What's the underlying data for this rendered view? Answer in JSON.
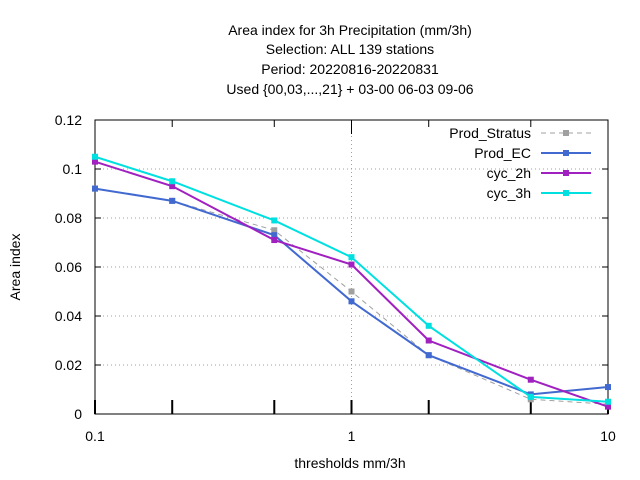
{
  "chart_data": {
    "type": "line",
    "title_lines": [
      "Area index  for 3h Precipitation (mm/3h)",
      "Selection: ALL    139 stations",
      "Period: 20220816-20220831",
      "Used {00,03,...,21} + 03-00 06-03 09-06"
    ],
    "xlabel": "thresholds mm/3h",
    "ylabel": "Area index",
    "x_scale": "log",
    "xlim": [
      0.1,
      10
    ],
    "ylim": [
      0,
      0.12
    ],
    "x_ticks": [
      {
        "value": 0.1,
        "label": "0.1"
      },
      {
        "value": 1,
        "label": "1"
      },
      {
        "value": 10,
        "label": "10"
      }
    ],
    "y_ticks": [
      {
        "value": 0,
        "label": "0"
      },
      {
        "value": 0.02,
        "label": "0.02"
      },
      {
        "value": 0.04,
        "label": "0.04"
      },
      {
        "value": 0.06,
        "label": "0.06"
      },
      {
        "value": 0.08,
        "label": "0.08"
      },
      {
        "value": 0.1,
        "label": "0.1"
      },
      {
        "value": 0.12,
        "label": "0.12"
      }
    ],
    "grid": true,
    "legend_position": "top-right",
    "x": [
      0.1,
      0.2,
      0.5,
      1,
      2,
      5,
      10
    ],
    "series": [
      {
        "name": "Prod_Stratus",
        "color": "#a0a0a0",
        "dashed": true,
        "values": [
          0.092,
          0.087,
          0.075,
          0.05,
          0.024,
          0.006,
          0.004
        ]
      },
      {
        "name": "Prod_EC",
        "color": "#4169d0",
        "dashed": false,
        "values": [
          0.092,
          0.087,
          0.073,
          0.046,
          0.024,
          0.008,
          0.011
        ]
      },
      {
        "name": "cyc_2h",
        "color": "#a020c0",
        "dashed": false,
        "values": [
          0.103,
          0.093,
          0.071,
          0.061,
          0.03,
          0.014,
          0.003
        ]
      },
      {
        "name": "cyc_3h",
        "color": "#00e0e0",
        "dashed": false,
        "values": [
          0.105,
          0.095,
          0.079,
          0.064,
          0.036,
          0.007,
          0.005
        ]
      }
    ]
  }
}
